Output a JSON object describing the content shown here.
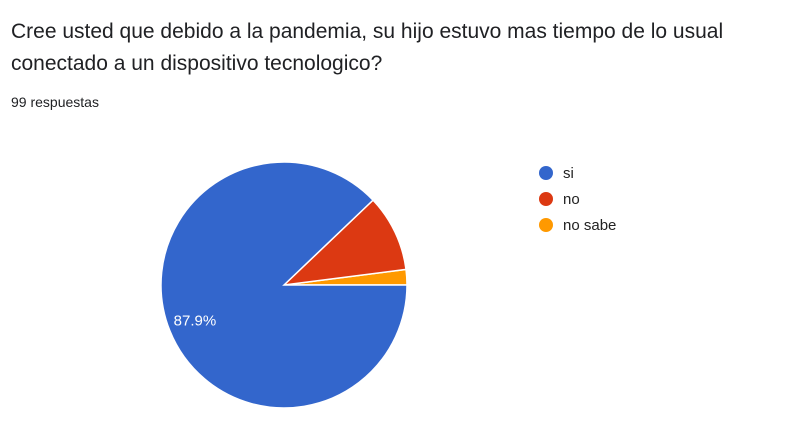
{
  "question": {
    "title": "Cree usted que debido a la pandemia, su hijo estuvo mas tiempo de lo usual conectado a un dispositivo tecnologico?",
    "response_count": "99 respuestas"
  },
  "chart_data": {
    "type": "pie",
    "title": "",
    "slices": [
      {
        "label": "si",
        "value": 87,
        "percent_label": "87.9%",
        "color": "#3366cc"
      },
      {
        "label": "no",
        "value": 10,
        "percent_label": "",
        "color": "#dc3912"
      },
      {
        "label": "no sabe",
        "value": 2,
        "percent_label": "",
        "color": "#ff9900"
      }
    ],
    "legend_position": "right"
  }
}
